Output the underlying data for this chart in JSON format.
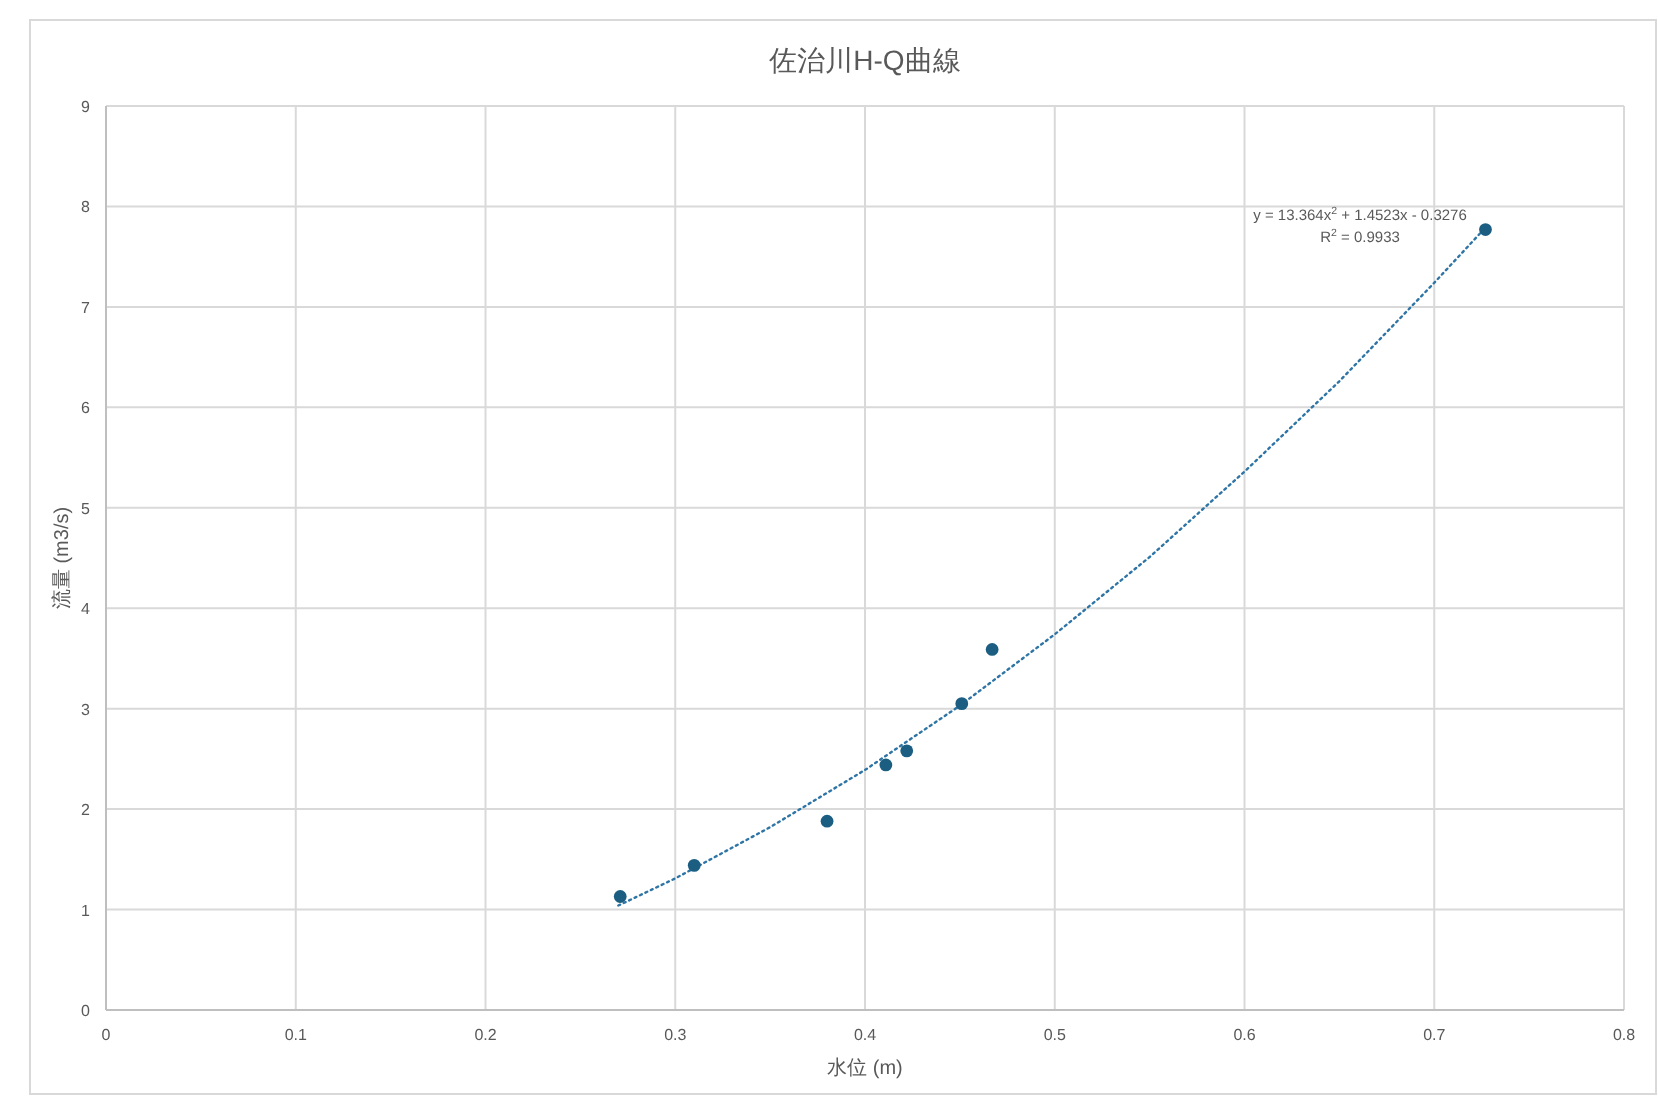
{
  "chart_data": {
    "type": "scatter",
    "title": "佐治川H-Q曲線",
    "xlabel": "水位 (m)",
    "ylabel": "流量 (m3/s)",
    "xlim": [
      0,
      0.8
    ],
    "xticks": [
      0,
      0.1,
      0.2,
      0.3,
      0.4,
      0.5,
      0.6,
      0.7,
      0.8
    ],
    "ylim": [
      0,
      9
    ],
    "yticks": [
      0,
      1,
      2,
      3,
      4,
      5,
      6,
      7,
      8,
      9
    ],
    "grid": true,
    "marker": "circle",
    "series": [
      {
        "color": "#1b5e82",
        "x": [
          0.271,
          0.31,
          0.38,
          0.411,
          0.422,
          0.451,
          0.467,
          0.727
        ],
        "values": [
          1.13,
          1.44,
          1.88,
          2.44,
          2.58,
          3.05,
          3.59,
          7.77
        ]
      },
      {
        "type": "line",
        "marker": "none",
        "line_style": "dotted",
        "color": "#2e75a6",
        "x": [
          0.27,
          0.3,
          0.35,
          0.4,
          0.45,
          0.5,
          0.55,
          0.6,
          0.65,
          0.7,
          0.727
        ],
        "values": [
          1.04,
          1.31,
          1.82,
          2.39,
          3.03,
          3.74,
          4.51,
          5.36,
          6.26,
          7.24,
          7.79
        ]
      }
    ],
    "annotations": [
      "y = 13.364x$^{2}$ + 1.4523x - 0.3276",
      "R$^{2}$ = 0.9933"
    ]
  }
}
